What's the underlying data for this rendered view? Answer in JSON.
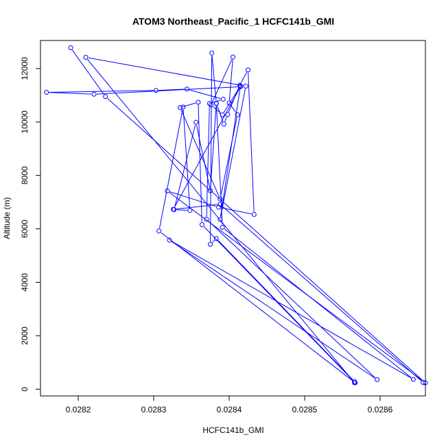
{
  "chart_data": {
    "type": "scatter",
    "title": "ATOM3 Northeast_Pacific_1 HCFC141b_GMI",
    "xlabel": "HCFC141b_GMI",
    "ylabel": "Altitude (m)",
    "xlim": [
      0.02815,
      0.02866
    ],
    "ylim": [
      -250,
      13050
    ],
    "xticks": [
      0.0282,
      0.0283,
      0.0284,
      0.0285,
      0.0286
    ],
    "xtick_labels": [
      "0.0282",
      "0.0283",
      "0.0284",
      "0.0285",
      "0.0286"
    ],
    "yticks": [
      0,
      2000,
      4000,
      6000,
      8000,
      10000,
      12000
    ],
    "ytick_labels": [
      "0",
      "2000",
      "4000",
      "6000",
      "8000",
      "10000",
      "12000"
    ],
    "grid": false,
    "legend": "none",
    "color": "#0000ff",
    "markers": "open-circle",
    "connected": true,
    "series": [
      {
        "points": [
          [
            0.02819,
            12780
          ],
          [
            0.028236,
            10950
          ],
          [
            0.02866,
            240
          ],
          [
            0.028318,
            7420
          ],
          [
            0.028386,
            6810
          ],
          [
            0.028433,
            6540
          ],
          [
            0.028425,
            11950
          ],
          [
            0.028414,
            11380
          ],
          [
            0.028398,
            10280
          ],
          [
            0.028393,
            9920
          ],
          [
            0.028383,
            10700
          ],
          [
            0.028377,
            12580
          ],
          [
            0.028375,
            5420
          ],
          [
            0.028383,
            5640
          ],
          [
            0.028566,
            290
          ],
          [
            0.028566,
            240
          ],
          [
            0.02821,
            12420
          ],
          [
            0.028422,
            11340
          ],
          [
            0.028388,
            6350
          ],
          [
            0.028415,
            11350
          ],
          [
            0.028391,
            10270
          ],
          [
            0.028376,
            10640
          ],
          [
            0.028405,
            12430
          ],
          [
            0.0284,
            10710
          ],
          [
            0.028411,
            10270
          ],
          [
            0.028388,
            7120
          ],
          [
            0.028335,
            10540
          ],
          [
            0.028359,
            10740
          ],
          [
            0.028364,
            6160
          ],
          [
            0.028567,
            240
          ],
          [
            0.028307,
            5920
          ],
          [
            0.028339,
            10560
          ],
          [
            0.028348,
            6690
          ],
          [
            0.028327,
            6720
          ],
          [
            0.028356,
            9990
          ],
          [
            0.028375,
            7430
          ],
          [
            0.028383,
            10690
          ],
          [
            0.028391,
            6060
          ],
          [
            0.028644,
            370
          ],
          [
            0.028321,
            5580
          ],
          [
            0.028596,
            360
          ],
          [
            0.02837,
            6360
          ],
          [
            0.028374,
            10690
          ],
          [
            0.028392,
            10850
          ],
          [
            0.028344,
            11230
          ],
          [
            0.028303,
            11180
          ],
          [
            0.028158,
            11110
          ],
          [
            0.028221,
            11040
          ],
          [
            0.028415,
            11320
          ],
          [
            0.028326,
            6730
          ],
          [
            0.028388,
            6920
          ],
          [
            0.028657,
            250
          ]
        ]
      }
    ]
  }
}
